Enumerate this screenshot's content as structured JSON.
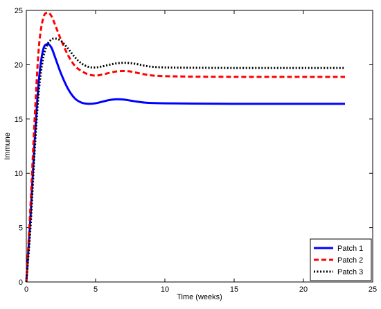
{
  "chart_data": {
    "type": "line",
    "title": "",
    "xlabel": "Time (weeks)",
    "ylabel": "Immune",
    "xlim": [
      0,
      25
    ],
    "ylim": [
      0,
      25
    ],
    "xticks": [
      0,
      5,
      10,
      15,
      20,
      25
    ],
    "yticks": [
      0,
      5,
      10,
      15,
      20,
      25
    ],
    "grid": false,
    "legend_position": "bottom-right",
    "series": [
      {
        "name": "Patch 1",
        "color": "#0000ff",
        "style": "solid",
        "x": [
          0,
          0.3,
          0.6,
          0.9,
          1.2,
          1.5,
          1.8,
          2.1,
          2.5,
          3.0,
          3.5,
          4.0,
          4.5,
          5.0,
          5.5,
          6.0,
          6.5,
          7.0,
          7.5,
          8.0,
          8.5,
          9.0,
          10,
          12,
          15,
          18,
          20,
          23
        ],
        "y": [
          0,
          6,
          13,
          18.5,
          21.3,
          21.9,
          21.6,
          20.6,
          19.2,
          17.8,
          16.9,
          16.5,
          16.4,
          16.45,
          16.6,
          16.75,
          16.82,
          16.8,
          16.7,
          16.6,
          16.52,
          16.48,
          16.45,
          16.42,
          16.4,
          16.4,
          16.4,
          16.4
        ]
      },
      {
        "name": "Patch 2",
        "color": "#ff0000",
        "style": "dashed",
        "x": [
          0,
          0.3,
          0.6,
          0.9,
          1.2,
          1.5,
          1.8,
          2.1,
          2.5,
          3.0,
          3.5,
          4.0,
          4.5,
          5.0,
          5.5,
          6.0,
          6.5,
          7.0,
          7.5,
          8.0,
          8.5,
          9.0,
          10,
          12,
          15,
          18,
          20,
          23
        ],
        "y": [
          0,
          7,
          15,
          21.5,
          24.2,
          24.8,
          24.5,
          23.6,
          22.3,
          20.9,
          19.9,
          19.4,
          19.1,
          19.0,
          19.1,
          19.25,
          19.38,
          19.42,
          19.38,
          19.25,
          19.12,
          19.02,
          18.95,
          18.9,
          18.88,
          18.88,
          18.88,
          18.88
        ]
      },
      {
        "name": "Patch 3",
        "color": "#000000",
        "style": "dotted",
        "x": [
          0,
          0.3,
          0.6,
          0.9,
          1.2,
          1.5,
          1.8,
          2.1,
          2.5,
          3.0,
          3.5,
          4.0,
          4.5,
          5.0,
          5.5,
          6.0,
          6.5,
          7.0,
          7.5,
          8.0,
          8.5,
          9.0,
          10,
          12,
          15,
          18,
          20,
          23
        ],
        "y": [
          0,
          5,
          12,
          17.5,
          20.5,
          21.8,
          22.3,
          22.4,
          22.2,
          21.5,
          20.7,
          20.1,
          19.8,
          19.75,
          19.85,
          20.0,
          20.12,
          20.18,
          20.15,
          20.05,
          19.92,
          19.82,
          19.75,
          19.72,
          19.7,
          19.7,
          19.7,
          19.7
        ]
      }
    ]
  }
}
